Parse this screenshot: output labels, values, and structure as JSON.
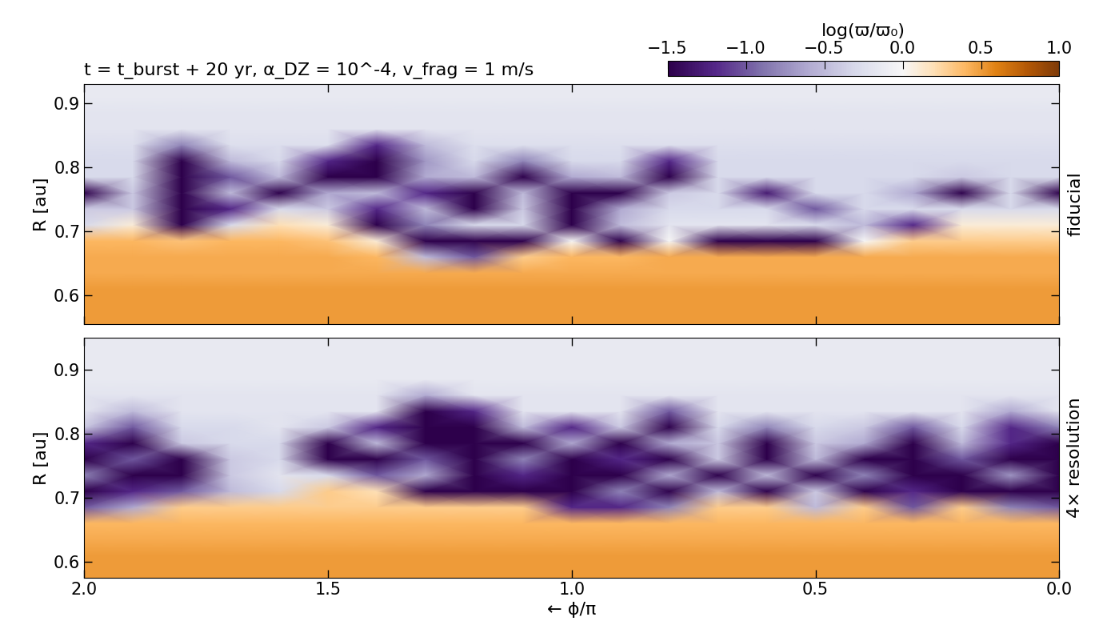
{
  "chart_data": [
    {
      "type": "heatmap",
      "title": "t = t_burst + 20 yr, α_DZ = 10^-4, v_frag = 1 m/s",
      "panel_label": "fiducial",
      "ylabel": "R [au]",
      "tick_labels": "y",
      "colorbar": {
        "label": "log(ϖ/ϖ₀)",
        "range": [
          -1.5,
          1.0
        ],
        "ticks": [
          {
            "value": -1.5,
            "label": "−1.5"
          },
          {
            "value": -1.0,
            "label": "−1.0"
          },
          {
            "value": -0.5,
            "label": "−0.5"
          },
          0.0,
          0.5,
          1.0
        ]
      },
      "xlim": [
        2.0,
        0.0
      ],
      "ylim": [
        0.555,
        0.93
      ],
      "xticks": [
        2.0,
        1.5,
        1.0,
        0.5,
        0.0
      ],
      "yticks": [
        0.6,
        0.7,
        0.8,
        0.9
      ],
      "x": [
        2.0,
        1.9,
        1.8,
        1.7,
        1.6,
        1.5,
        1.4,
        1.3,
        1.2,
        1.1,
        1.0,
        0.9,
        0.8,
        0.7,
        0.6,
        0.5,
        0.4,
        0.3,
        0.2,
        0.1,
        0.0
      ],
      "y": [
        0.55,
        0.585,
        0.61,
        0.635,
        0.66,
        0.685,
        0.71,
        0.735,
        0.76,
        0.785,
        0.81,
        0.835,
        0.86,
        0.885,
        0.91,
        0.935,
        0.96
      ],
      "values": [
        [
          0.5,
          0.5,
          0.5,
          0.5,
          0.5,
          0.5,
          0.5,
          0.5,
          0.5,
          0.5,
          0.5,
          0.5,
          0.5,
          0.5,
          0.5,
          0.5,
          0.5,
          0.5,
          0.5,
          0.5,
          0.5
        ],
        [
          0.5,
          0.5,
          0.5,
          0.5,
          0.5,
          0.5,
          0.5,
          0.5,
          0.5,
          0.5,
          0.5,
          0.5,
          0.5,
          0.5,
          0.5,
          0.5,
          0.5,
          0.5,
          0.5,
          0.5,
          0.5
        ],
        [
          0.5,
          0.5,
          0.5,
          0.5,
          0.5,
          0.5,
          0.5,
          0.5,
          0.5,
          0.5,
          0.5,
          0.5,
          0.5,
          0.5,
          0.5,
          0.5,
          0.5,
          0.5,
          0.5,
          0.5,
          0.5
        ],
        [
          0.45,
          0.45,
          0.45,
          0.45,
          0.45,
          0.45,
          0.45,
          0.45,
          0.45,
          0.45,
          0.45,
          0.45,
          0.45,
          0.45,
          0.45,
          0.45,
          0.45,
          0.45,
          0.45,
          0.45,
          0.45
        ],
        [
          0.45,
          0.45,
          0.45,
          0.45,
          0.45,
          0.45,
          0.4,
          -0.5,
          -1.0,
          0.3,
          0.4,
          0.4,
          0.45,
          0.45,
          0.45,
          0.45,
          0.45,
          0.45,
          0.45,
          0.45,
          0.45
        ],
        [
          0.4,
          0.4,
          0.35,
          0.4,
          0.4,
          0.35,
          0.1,
          -1.5,
          -1.5,
          -1.5,
          0.0,
          -1.5,
          0.0,
          -1.5,
          -1.5,
          -1.5,
          0.0,
          0.3,
          0.3,
          0.3,
          0.3
        ],
        [
          -0.3,
          0.1,
          -1.5,
          -0.3,
          0.2,
          0.1,
          -1.5,
          -0.8,
          -0.3,
          -0.3,
          -1.5,
          -0.5,
          -0.2,
          -0.2,
          -0.2,
          -0.3,
          -0.5,
          -1.2,
          0.1,
          0.1,
          0.1
        ],
        [
          -0.4,
          -0.4,
          -1.5,
          -1.2,
          -0.3,
          -0.4,
          -1.2,
          -0.5,
          -1.5,
          -0.4,
          -1.5,
          -0.6,
          -0.3,
          -0.3,
          -0.3,
          -1.0,
          -0.3,
          -0.3,
          -0.3,
          -0.3,
          -0.3
        ],
        [
          -1.5,
          -0.4,
          -1.5,
          -0.5,
          -1.5,
          -0.6,
          -0.5,
          -1.2,
          -1.5,
          -0.5,
          -1.5,
          -1.5,
          -0.4,
          -0.3,
          -1.3,
          -0.3,
          -0.3,
          -0.6,
          -1.5,
          -0.3,
          -1.5
        ],
        [
          -0.3,
          -0.3,
          -1.5,
          -1.0,
          -0.5,
          -1.5,
          -1.5,
          -0.6,
          -0.5,
          -1.5,
          -0.6,
          -0.5,
          -1.5,
          -0.3,
          -0.3,
          -0.3,
          -0.3,
          -0.3,
          -0.4,
          -0.3,
          -0.3
        ],
        [
          -0.3,
          -0.3,
          -1.5,
          -0.5,
          -0.3,
          -1.2,
          -1.5,
          -0.7,
          -0.3,
          -0.8,
          -0.3,
          -0.3,
          -1.2,
          -0.3,
          -0.3,
          -0.3,
          -0.3,
          -0.3,
          -0.3,
          -0.3,
          -0.3
        ],
        [
          -0.25,
          -0.25,
          -0.8,
          -0.25,
          -0.25,
          -0.25,
          -1.2,
          -0.5,
          -0.25,
          -0.25,
          -0.25,
          -0.25,
          -0.25,
          -0.25,
          -0.25,
          -0.25,
          -0.25,
          -0.25,
          -0.25,
          -0.25,
          -0.25
        ],
        [
          -0.2,
          -0.2,
          -0.2,
          -0.2,
          -0.2,
          -0.2,
          -0.2,
          -0.2,
          -0.2,
          -0.2,
          -0.2,
          -0.2,
          -0.2,
          -0.2,
          -0.2,
          -0.2,
          -0.2,
          -0.2,
          -0.2,
          -0.2,
          -0.2
        ],
        [
          -0.2,
          -0.2,
          -0.2,
          -0.2,
          -0.2,
          -0.2,
          -0.2,
          -0.2,
          -0.2,
          -0.2,
          -0.2,
          -0.2,
          -0.2,
          -0.2,
          -0.2,
          -0.2,
          -0.2,
          -0.2,
          -0.2,
          -0.2,
          -0.2
        ],
        [
          -0.15,
          -0.15,
          -0.15,
          -0.15,
          -0.15,
          -0.15,
          -0.15,
          -0.15,
          -0.15,
          -0.15,
          -0.15,
          -0.15,
          -0.15,
          -0.15,
          -0.15,
          -0.15,
          -0.15,
          -0.15,
          -0.15,
          -0.15,
          -0.15
        ],
        [
          -0.15,
          -0.15,
          -0.15,
          -0.15,
          -0.15,
          -0.15,
          -0.15,
          -0.15,
          -0.15,
          -0.15,
          -0.15,
          -0.15,
          -0.15,
          -0.15,
          -0.15,
          -0.15,
          -0.15,
          -0.15,
          -0.15,
          -0.15,
          -0.15
        ],
        [
          -0.15,
          -0.15,
          -0.15,
          -0.15,
          -0.15,
          -0.15,
          -0.15,
          -0.15,
          -0.15,
          -0.15,
          -0.15,
          -0.15,
          -0.15,
          -0.15,
          -0.15,
          -0.15,
          -0.15,
          -0.15,
          -0.15,
          -0.15,
          -0.15
        ]
      ]
    },
    {
      "type": "heatmap",
      "panel_label": "4× resolution",
      "xlabel": "← ϕ/π",
      "ylabel": "R [au]",
      "xlim": [
        2.0,
        0.0
      ],
      "ylim": [
        0.575,
        0.95
      ],
      "xticks": [
        2.0,
        1.5,
        1.0,
        0.5,
        0.0
      ],
      "yticks": [
        0.6,
        0.7,
        0.8,
        0.9
      ],
      "x": [
        2.0,
        1.9,
        1.8,
        1.7,
        1.6,
        1.5,
        1.4,
        1.3,
        1.2,
        1.1,
        1.0,
        0.9,
        0.8,
        0.7,
        0.6,
        0.5,
        0.4,
        0.3,
        0.2,
        0.1,
        0.0
      ],
      "y": [
        0.55,
        0.585,
        0.61,
        0.635,
        0.66,
        0.685,
        0.71,
        0.735,
        0.76,
        0.785,
        0.81,
        0.835,
        0.86,
        0.885,
        0.91,
        0.935,
        0.96
      ],
      "values": [
        [
          0.5,
          0.5,
          0.5,
          0.5,
          0.5,
          0.5,
          0.5,
          0.5,
          0.5,
          0.5,
          0.5,
          0.5,
          0.5,
          0.5,
          0.5,
          0.5,
          0.5,
          0.5,
          0.5,
          0.5,
          0.5
        ],
        [
          0.5,
          0.5,
          0.5,
          0.5,
          0.5,
          0.5,
          0.5,
          0.5,
          0.5,
          0.5,
          0.5,
          0.5,
          0.5,
          0.5,
          0.5,
          0.5,
          0.5,
          0.5,
          0.5,
          0.5,
          0.5
        ],
        [
          0.5,
          0.5,
          0.5,
          0.5,
          0.5,
          0.5,
          0.5,
          0.5,
          0.5,
          0.5,
          0.5,
          0.5,
          0.5,
          0.5,
          0.5,
          0.5,
          0.5,
          0.5,
          0.5,
          0.5,
          0.5
        ],
        [
          0.45,
          0.45,
          0.45,
          0.45,
          0.45,
          0.45,
          0.45,
          0.45,
          0.45,
          0.45,
          0.45,
          0.45,
          0.45,
          0.45,
          0.45,
          0.45,
          0.45,
          0.45,
          0.45,
          0.45,
          0.45
        ],
        [
          0.4,
          0.4,
          0.4,
          0.4,
          0.4,
          0.4,
          0.4,
          0.4,
          0.4,
          0.4,
          0.4,
          0.4,
          0.4,
          0.4,
          0.4,
          0.4,
          0.4,
          0.4,
          0.4,
          0.4,
          0.4
        ],
        [
          -1.0,
          -0.6,
          0.3,
          0.3,
          0.3,
          0.3,
          0.3,
          0.3,
          0.3,
          0.3,
          -1.2,
          -1.2,
          -0.8,
          0.3,
          0.3,
          -0.5,
          0.3,
          -1.0,
          0.3,
          -0.8,
          -1.0
        ],
        [
          -1.5,
          -1.2,
          -1.0,
          -0.5,
          -0.3,
          0.3,
          0.2,
          -1.5,
          -1.5,
          -1.5,
          -1.5,
          -0.8,
          -1.5,
          -0.5,
          -1.5,
          -0.4,
          -1.5,
          -1.2,
          -1.5,
          -1.5,
          -1.5
        ],
        [
          -0.8,
          -1.5,
          -1.5,
          -0.4,
          -0.2,
          -0.3,
          -1.0,
          -0.6,
          -1.5,
          -1.2,
          -1.5,
          -1.5,
          -0.6,
          -1.5,
          -0.5,
          -1.5,
          -0.8,
          -1.5,
          -1.5,
          -0.7,
          -1.5
        ],
        [
          -1.5,
          -1.0,
          -1.5,
          -0.4,
          -0.3,
          -1.5,
          -1.5,
          -1.0,
          -1.5,
          -0.8,
          -1.5,
          -1.2,
          -1.5,
          -0.4,
          -1.5,
          -0.5,
          -1.5,
          -1.5,
          -1.0,
          -1.5,
          -1.5
        ],
        [
          -1.2,
          -1.5,
          -0.4,
          -0.3,
          -0.3,
          -1.5,
          -0.5,
          -1.5,
          -1.5,
          -1.5,
          -0.6,
          -1.5,
          -0.6,
          -0.4,
          -1.5,
          -0.4,
          -0.6,
          -1.5,
          -0.5,
          -1.2,
          -1.5
        ],
        [
          -0.4,
          -1.0,
          -0.3,
          -0.3,
          -0.2,
          -0.4,
          -1.2,
          -1.5,
          -1.5,
          -0.5,
          -1.2,
          -0.4,
          -1.5,
          -0.3,
          -0.8,
          -0.3,
          -0.4,
          -1.0,
          -0.3,
          -1.2,
          -0.8
        ],
        [
          -0.2,
          -0.5,
          -0.2,
          -0.2,
          -0.2,
          -0.2,
          -0.2,
          -1.5,
          -1.2,
          -0.2,
          -0.2,
          -0.2,
          -1.0,
          -0.2,
          -0.2,
          -0.2,
          -0.2,
          -0.2,
          -0.2,
          -0.6,
          -0.2
        ],
        [
          -0.2,
          -0.2,
          -0.2,
          -0.2,
          -0.2,
          -0.2,
          -0.2,
          -0.6,
          -0.2,
          -0.2,
          -0.2,
          -0.2,
          -0.2,
          -0.2,
          -0.2,
          -0.2,
          -0.2,
          -0.2,
          -0.2,
          -0.2,
          -0.2
        ],
        [
          -0.15,
          -0.15,
          -0.15,
          -0.15,
          -0.15,
          -0.15,
          -0.15,
          -0.15,
          -0.15,
          -0.15,
          -0.15,
          -0.15,
          -0.15,
          -0.15,
          -0.15,
          -0.15,
          -0.15,
          -0.15,
          -0.15,
          -0.15,
          -0.15
        ],
        [
          -0.15,
          -0.15,
          -0.15,
          -0.15,
          -0.15,
          -0.15,
          -0.15,
          -0.15,
          -0.15,
          -0.15,
          -0.15,
          -0.15,
          -0.15,
          -0.15,
          -0.15,
          -0.15,
          -0.15,
          -0.15,
          -0.15,
          -0.15,
          -0.15
        ],
        [
          -0.15,
          -0.15,
          -0.15,
          -0.15,
          -0.15,
          -0.15,
          -0.15,
          -0.15,
          -0.15,
          -0.15,
          -0.15,
          -0.15,
          -0.15,
          -0.15,
          -0.15,
          -0.15,
          -0.15,
          -0.15,
          -0.15,
          -0.15,
          -0.15
        ],
        [
          -0.15,
          -0.15,
          -0.15,
          -0.15,
          -0.15,
          -0.15,
          -0.15,
          -0.15,
          -0.15,
          -0.15,
          -0.15,
          -0.15,
          -0.15,
          -0.15,
          -0.15,
          -0.15,
          -0.15,
          -0.15,
          -0.15,
          -0.15,
          -0.15
        ]
      ]
    }
  ]
}
